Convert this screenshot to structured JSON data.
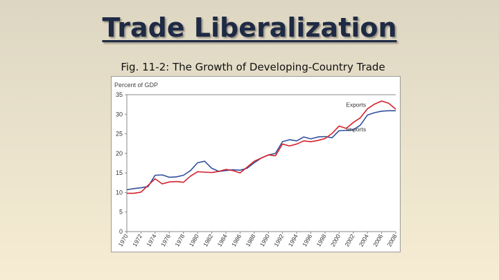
{
  "slide": {
    "title": "Trade Liberalization",
    "subtitle": "Fig. 11-2: The Growth of Developing-Country Trade"
  },
  "colors": {
    "exports": "#d6202c",
    "imports": "#2f4f9b",
    "axis": "#888888"
  },
  "chart_data": {
    "type": "line",
    "title": "",
    "ylabel": "Percent of GDP",
    "xlabel": "",
    "ylim": [
      0,
      35
    ],
    "xlim": [
      1970,
      2008
    ],
    "yticks": [
      0,
      5,
      10,
      15,
      20,
      25,
      30,
      35
    ],
    "xticks": [
      1970,
      1972,
      1974,
      1976,
      1978,
      1980,
      1982,
      1984,
      1986,
      1988,
      1990,
      1992,
      1994,
      1996,
      1998,
      2000,
      2002,
      2004,
      2006,
      2008
    ],
    "grid": false,
    "x": [
      1970,
      1971,
      1972,
      1973,
      1974,
      1975,
      1976,
      1977,
      1978,
      1979,
      1980,
      1981,
      1982,
      1983,
      1984,
      1985,
      1986,
      1987,
      1988,
      1989,
      1990,
      1991,
      1992,
      1993,
      1994,
      1995,
      1996,
      1997,
      1998,
      1999,
      2000,
      2001,
      2002,
      2003,
      2004,
      2005,
      2006,
      2007,
      2008
    ],
    "series": [
      {
        "name": "Exports",
        "values": [
          9.8,
          9.8,
          10.1,
          11.8,
          13.5,
          12.2,
          12.7,
          12.8,
          12.6,
          14.2,
          15.3,
          15.2,
          15.1,
          15.4,
          15.9,
          15.6,
          15.0,
          16.5,
          18.0,
          18.8,
          19.6,
          19.4,
          22.4,
          21.9,
          22.4,
          23.2,
          23.0,
          23.3,
          23.8,
          25.1,
          27.0,
          26.4,
          27.9,
          29.1,
          31.4,
          32.6,
          33.4,
          32.8,
          31.3
        ]
      },
      {
        "name": "Imports",
        "values": [
          10.7,
          11.0,
          11.2,
          11.5,
          14.4,
          14.5,
          13.9,
          14.0,
          14.4,
          15.6,
          17.6,
          18.0,
          16.2,
          15.4,
          15.6,
          15.8,
          15.7,
          16.2,
          17.6,
          18.8,
          19.6,
          20.0,
          23.0,
          23.5,
          23.2,
          24.2,
          23.7,
          24.2,
          24.3,
          24.0,
          25.8,
          25.9,
          26.0,
          27.2,
          29.8,
          30.4,
          30.8,
          30.9,
          30.9
        ]
      }
    ],
    "annotations": [
      {
        "text": "Exports",
        "series": "Exports"
      },
      {
        "text": "Imports",
        "series": "Imports"
      }
    ]
  }
}
